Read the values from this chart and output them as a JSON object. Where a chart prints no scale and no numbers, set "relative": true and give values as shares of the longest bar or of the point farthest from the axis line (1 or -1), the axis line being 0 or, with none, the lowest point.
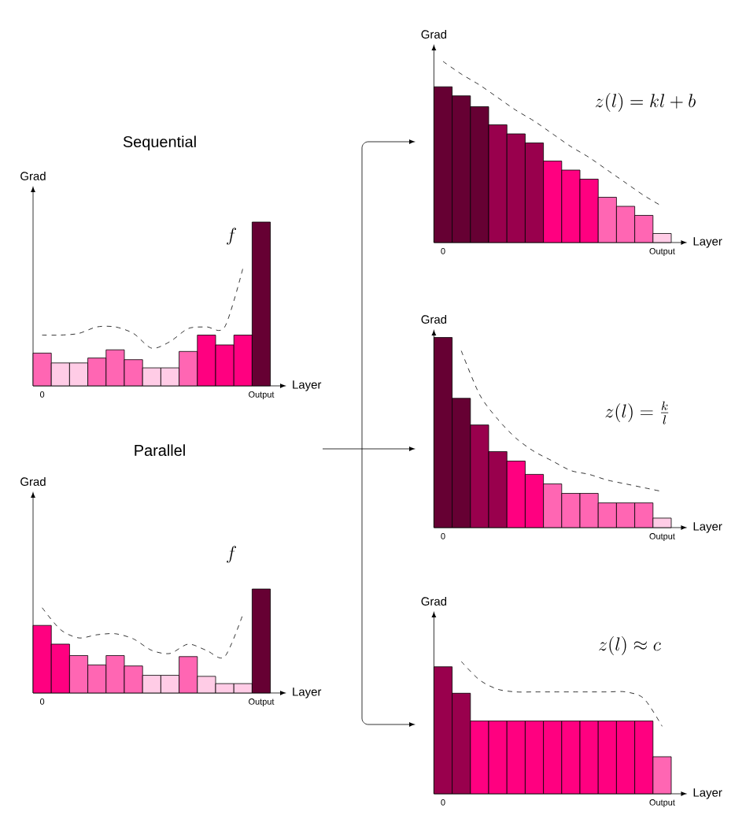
{
  "chart_data": [
    {
      "type": "bar",
      "relative": true,
      "title": "Sequential",
      "xlabel": "Layer",
      "ylabel": "Grad",
      "annotations": [
        "f"
      ],
      "categories": [
        "0",
        null,
        null,
        null,
        null,
        null,
        null,
        null,
        null,
        null,
        null,
        null,
        "Output"
      ],
      "series": [
        {
          "colors": [
            "#ff66b3",
            "#ffcce6",
            "#ffcce6",
            "#ff66b3",
            "#ff66b3",
            "#ff66b3",
            "#ffcce6",
            "#ffcce6",
            "#ff66b3",
            "#ff0080",
            "#ff0080",
            "#ff0080",
            "#660033"
          ],
          "values": [
            0.2,
            0.14,
            0.14,
            0.17,
            0.22,
            0.16,
            0.11,
            0.11,
            0.21,
            0.31,
            0.25,
            0.31,
            1
          ]
        },
        {
          "type": "line",
          "color": "#000000",
          "line_style": "dashed",
          "values": [
            0.31,
            0.31,
            0.32,
            0.36,
            0.36,
            0.32,
            0.23,
            0.27,
            0.35,
            0.36,
            0.36,
            0.72,
            null
          ]
        }
      ]
    },
    {
      "type": "bar",
      "relative": true,
      "title": "Parallel",
      "xlabel": "Layer",
      "ylabel": "Grad",
      "annotations": [
        "f"
      ],
      "categories": [
        "0",
        null,
        null,
        null,
        null,
        null,
        null,
        null,
        null,
        null,
        null,
        null,
        "Output"
      ],
      "series": [
        {
          "colors": [
            "#ff0080",
            "#ff0080",
            "#ff66b3",
            "#ff66b3",
            "#ff66b3",
            "#ff66b3",
            "#ffcce6",
            "#ffcce6",
            "#ff66b3",
            "#ffcce6",
            "#ffcce6",
            "#ffcce6",
            "#660033"
          ],
          "values": [
            0.65,
            0.47,
            0.36,
            0.27,
            0.36,
            0.26,
            0.17,
            0.17,
            0.35,
            0.16,
            0.09,
            0.09,
            1
          ]
        },
        {
          "type": "line",
          "color": "#000000",
          "line_style": "dashed",
          "values": [
            0.82,
            0.61,
            0.53,
            0.56,
            0.57,
            0.52,
            0.41,
            0.38,
            0.47,
            0.41,
            0.35,
            0.76,
            null
          ]
        }
      ]
    },
    {
      "type": "bar",
      "relative": true,
      "xlabel": "Layer",
      "ylabel": "Grad",
      "annotations": [
        "z(l) = kl + b"
      ],
      "categories": [
        "0",
        null,
        null,
        null,
        null,
        null,
        null,
        null,
        null,
        null,
        null,
        null,
        "Output"
      ],
      "series": [
        {
          "colors": [
            "#660033",
            "#660033",
            "#660033",
            "#99004d",
            "#99004d",
            "#99004d",
            "#ff0080",
            "#ff0080",
            "#ff0080",
            "#ff66b3",
            "#ff66b3",
            "#ff66b3",
            "#ffcce6"
          ],
          "values": [
            0.86,
            0.81,
            0.75,
            0.65,
            0.6,
            0.55,
            0.45,
            0.4,
            0.35,
            0.25,
            0.2,
            0.15,
            0.05
          ]
        },
        {
          "type": "line",
          "color": "#000000",
          "line_style": "dashed",
          "values": [
            1,
            0.93,
            0.87,
            0.8,
            0.73,
            0.67,
            0.6,
            0.53,
            0.47,
            0.4,
            0.33,
            0.26,
            0.2
          ]
        }
      ]
    },
    {
      "type": "bar",
      "relative": true,
      "xlabel": "Layer",
      "ylabel": "Grad",
      "annotations": [
        "z(l) = \\frac{k}{l}"
      ],
      "categories": [
        "0",
        null,
        null,
        null,
        null,
        null,
        null,
        null,
        null,
        null,
        null,
        null,
        "Output"
      ],
      "series": [
        {
          "colors": [
            "#660033",
            "#660033",
            "#99004d",
            "#99004d",
            "#ff0080",
            "#ff0080",
            "#ff66b3",
            "#ff66b3",
            "#ff66b3",
            "#ff66b3",
            "#ff66b3",
            "#ff66b3",
            "#ffcce6"
          ],
          "values": [
            1,
            0.68,
            0.54,
            0.4,
            0.35,
            0.28,
            0.23,
            0.18,
            0.18,
            0.13,
            0.13,
            0.13,
            0.05
          ]
        },
        {
          "type": "line",
          "color": "#000000",
          "line_style": "dashed",
          "values": [
            null,
            0.93,
            0.7,
            0.57,
            0.47,
            0.4,
            0.35,
            0.3,
            0.28,
            0.25,
            0.23,
            0.21,
            0.19
          ]
        }
      ]
    },
    {
      "type": "bar",
      "relative": true,
      "xlabel": "Layer",
      "ylabel": "Grad",
      "annotations": [
        "z(l) \\approx c"
      ],
      "categories": [
        "0",
        null,
        null,
        null,
        null,
        null,
        null,
        null,
        null,
        null,
        null,
        null,
        "Output"
      ],
      "series": [
        {
          "colors": [
            "#99004d",
            "#99004d",
            "#ff0080",
            "#ff0080",
            "#ff0080",
            "#ff0080",
            "#ff0080",
            "#ff0080",
            "#ff0080",
            "#ff0080",
            "#ff0080",
            "#ff0080",
            "#ff66b3"
          ],
          "values": [
            0.96,
            0.76,
            0.55,
            0.55,
            0.55,
            0.55,
            0.55,
            0.55,
            0.55,
            0.55,
            0.55,
            0.55,
            0.28
          ]
        },
        {
          "type": "line",
          "color": "#000000",
          "line_style": "dashed",
          "values": [
            null,
            1,
            0.86,
            0.79,
            0.77,
            0.77,
            0.77,
            0.77,
            0.77,
            0.77,
            0.77,
            0.72,
            0.51
          ]
        }
      ]
    }
  ]
}
